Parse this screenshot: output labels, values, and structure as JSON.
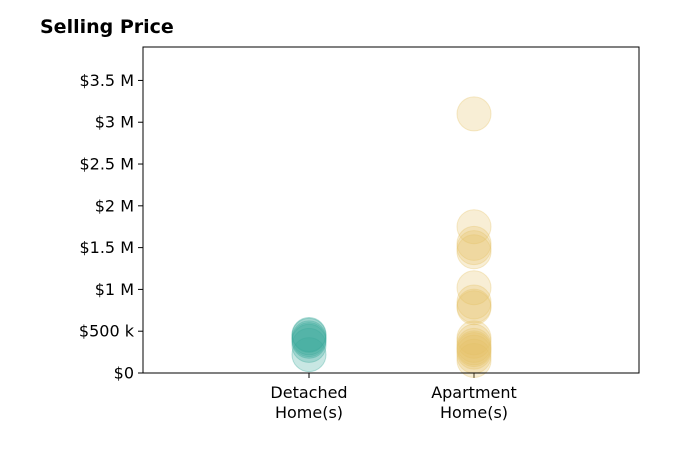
{
  "chart_data": {
    "type": "scatter",
    "title": "Selling Price",
    "xlabel": "",
    "ylabel": "",
    "categories": [
      "Detached\nHome(s)",
      "Apartment\nHome(s)"
    ],
    "y_ticks": [
      "$0",
      "$500 k",
      "$1 M",
      "$1.5 M",
      "$2 M",
      "$2.5 M",
      "$3 M",
      "$3.5 M"
    ],
    "y_tick_values": [
      0,
      500000,
      1000000,
      1500000,
      2000000,
      2500000,
      3000000,
      3500000
    ],
    "ylim": [
      0,
      3900000
    ],
    "grid": false,
    "series": [
      {
        "category": "Detached\nHome(s)",
        "color": "#3aa99b",
        "values": [
          220000,
          330000,
          380000,
          400000,
          420000,
          450000,
          460000
        ]
      },
      {
        "category": "Apartment\nHome(s)",
        "color": "#e6c267",
        "values": [
          150000,
          200000,
          250000,
          280000,
          300000,
          330000,
          380000,
          420000,
          780000,
          800000,
          850000,
          1020000,
          1450000,
          1500000,
          1550000,
          1750000,
          3100000
        ]
      }
    ]
  }
}
